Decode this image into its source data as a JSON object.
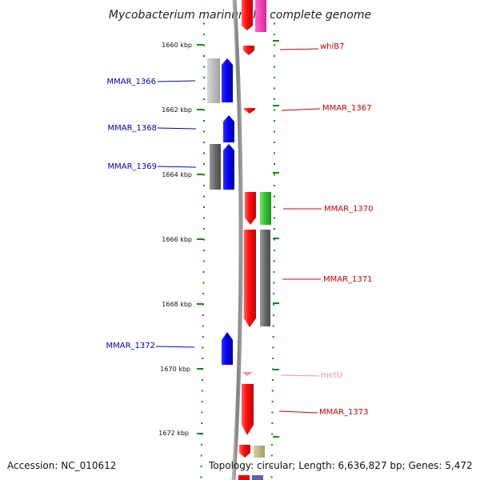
{
  "title": "Mycobacterium marinum M, complete genome",
  "footer": {
    "accession": "Accession: NC_010612",
    "topology": "Topology: circular; Length: 6,636,827 bp; Genes: 5,472"
  },
  "scale": {
    "ticks": [
      "1660 kbp",
      "1662 kbp",
      "1664 kbp",
      "1666 kbp",
      "1668 kbp",
      "1670 kbp",
      "1672 kbp"
    ]
  },
  "genes": {
    "whiB7": {
      "label": "whiB7",
      "strand": "minus",
      "color": "#ee0000"
    },
    "MMAR_1366": {
      "label": "MMAR_1366",
      "strand": "plus",
      "color": "#0000ee"
    },
    "MMAR_1367": {
      "label": "MMAR_1367",
      "strand": "minus",
      "color": "#ee0000"
    },
    "MMAR_1368": {
      "label": "MMAR_1368",
      "strand": "plus",
      "color": "#0000ee"
    },
    "MMAR_1369": {
      "label": "MMAR_1369",
      "strand": "plus",
      "color": "#0000ee"
    },
    "MMAR_1370": {
      "label": "MMAR_1370",
      "strand": "minus",
      "color": "#ee0000"
    },
    "MMAR_1371": {
      "label": "MMAR_1371",
      "strand": "minus",
      "color": "#ee0000"
    },
    "MMAR_1372": {
      "label": "MMAR_1372",
      "strand": "plus",
      "color": "#0000ee"
    },
    "metU": {
      "label": "metU",
      "strand": "minus",
      "color": "#f090b0"
    },
    "MMAR_1373": {
      "label": "MMAR_1373",
      "strand": "minus",
      "color": "#ee0000"
    }
  }
}
